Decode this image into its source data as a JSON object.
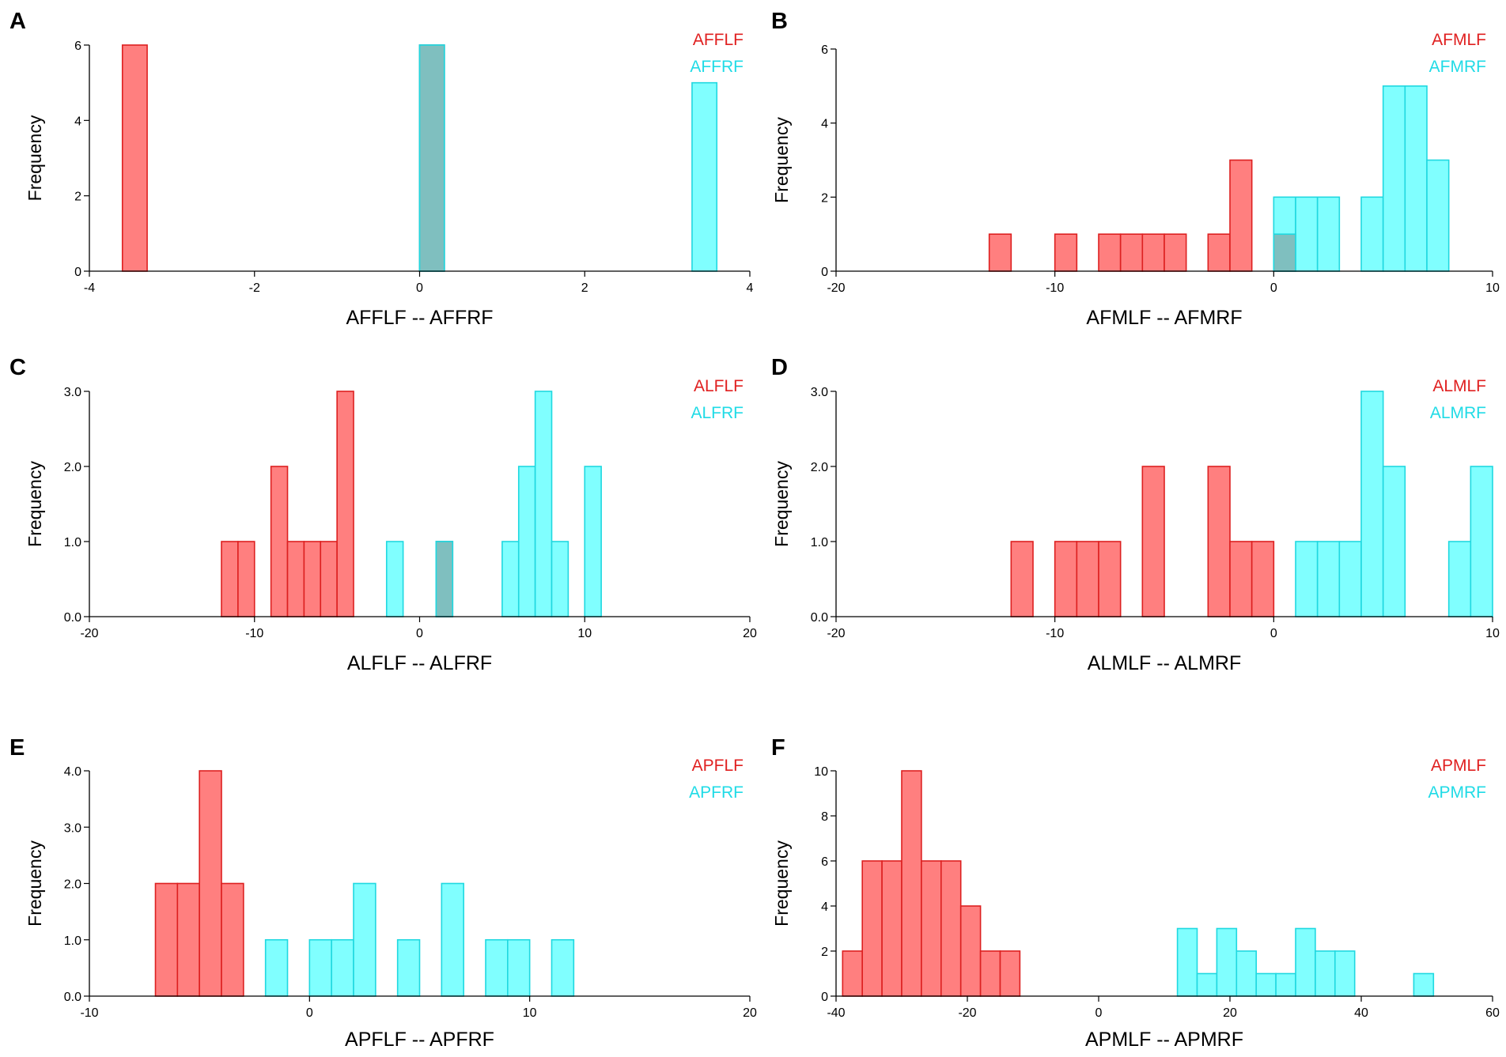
{
  "chart_data": [
    {
      "type": "bar",
      "panel_label": "A",
      "title": "",
      "xlabel": "AFFLF -- AFFRF",
      "ylabel": "Frequency",
      "xlim": [
        -4,
        4
      ],
      "ylim": [
        0,
        6
      ],
      "xticks": [
        -4,
        -2,
        0,
        2,
        4
      ],
      "xtick_labels": [
        "-4",
        "-2",
        "0",
        "2",
        "4"
      ],
      "yticks": [
        0,
        2,
        4,
        6
      ],
      "ytick_labels": [
        "0",
        "2",
        "4",
        "6"
      ],
      "legend_position": "top-right",
      "series": [
        {
          "name": "AFFLF",
          "color": "#ff7f7f",
          "edge": "#dd2020",
          "legend_color": "#e02020",
          "bins": [
            {
              "x0": -3.6,
              "x1": -3.3,
              "count": 6
            },
            {
              "x0": 0,
              "x1": 0.3,
              "count": 6
            }
          ]
        },
        {
          "name": "AFFRF",
          "color": "#80ffff",
          "edge": "#20d8e0",
          "legend_color": "#20dbe6",
          "bins": [
            {
              "x0": 0,
              "x1": 0.3,
              "count": 6
            },
            {
              "x0": 3.3,
              "x1": 3.6,
              "count": 5
            }
          ]
        }
      ]
    },
    {
      "type": "bar",
      "panel_label": "B",
      "title": "",
      "xlabel": "AFMLF -- AFMRF",
      "ylabel": "Frequency",
      "xlim": [
        -20,
        10
      ],
      "ylim": [
        0,
        6
      ],
      "xticks": [
        -20,
        -10,
        0,
        10
      ],
      "xtick_labels": [
        "-20",
        "-10",
        "0",
        "10"
      ],
      "yticks": [
        0,
        2,
        4,
        6
      ],
      "ytick_labels": [
        "0",
        "2",
        "4",
        "6"
      ],
      "legend_position": "top-right",
      "series": [
        {
          "name": "AFMLF",
          "color": "#ff7f7f",
          "edge": "#dd2020",
          "legend_color": "#e02020",
          "bins": [
            {
              "x0": -13,
              "x1": -12,
              "count": 1
            },
            {
              "x0": -10,
              "x1": -9,
              "count": 1
            },
            {
              "x0": -8,
              "x1": -7,
              "count": 1
            },
            {
              "x0": -7,
              "x1": -6,
              "count": 1
            },
            {
              "x0": -6,
              "x1": -5,
              "count": 1
            },
            {
              "x0": -5,
              "x1": -4,
              "count": 1
            },
            {
              "x0": -3,
              "x1": -2,
              "count": 1
            },
            {
              "x0": -2,
              "x1": -1,
              "count": 3
            },
            {
              "x0": 0,
              "x1": 1,
              "count": 1
            }
          ]
        },
        {
          "name": "AFMRF",
          "color": "#80ffff",
          "edge": "#20d8e0",
          "legend_color": "#20dbe6",
          "bins": [
            {
              "x0": 0,
              "x1": 1,
              "count": 2
            },
            {
              "x0": 1,
              "x1": 2,
              "count": 2
            },
            {
              "x0": 2,
              "x1": 3,
              "count": 2
            },
            {
              "x0": 4,
              "x1": 5,
              "count": 2
            },
            {
              "x0": 5,
              "x1": 6,
              "count": 5
            },
            {
              "x0": 6,
              "x1": 7,
              "count": 5
            },
            {
              "x0": 7,
              "x1": 8,
              "count": 3
            }
          ]
        }
      ]
    },
    {
      "type": "bar",
      "panel_label": "C",
      "title": "",
      "xlabel": "ALFLF -- ALFRF",
      "ylabel": "Frequency",
      "xlim": [
        -20,
        20
      ],
      "ylim": [
        0,
        3
      ],
      "xticks": [
        -20,
        -10,
        0,
        10,
        20
      ],
      "xtick_labels": [
        "-20",
        "-10",
        "0",
        "10",
        "20"
      ],
      "yticks": [
        0,
        1,
        2,
        3
      ],
      "ytick_labels": [
        "0.0",
        "1.0",
        "2.0",
        "3.0"
      ],
      "legend_position": "top-right",
      "series": [
        {
          "name": "ALFLF",
          "color": "#ff7f7f",
          "edge": "#dd2020",
          "legend_color": "#e02020",
          "bins": [
            {
              "x0": -12,
              "x1": -11,
              "count": 1
            },
            {
              "x0": -11,
              "x1": -10,
              "count": 1
            },
            {
              "x0": -9,
              "x1": -8,
              "count": 2
            },
            {
              "x0": -8,
              "x1": -7,
              "count": 1
            },
            {
              "x0": -7,
              "x1": -6,
              "count": 1
            },
            {
              "x0": -6,
              "x1": -5,
              "count": 1
            },
            {
              "x0": -5,
              "x1": -4,
              "count": 3
            },
            {
              "x0": 1,
              "x1": 2,
              "count": 1
            }
          ]
        },
        {
          "name": "ALFRF",
          "color": "#80ffff",
          "edge": "#20d8e0",
          "legend_color": "#20dbe6",
          "bins": [
            {
              "x0": -2,
              "x1": -1,
              "count": 1
            },
            {
              "x0": 1,
              "x1": 2,
              "count": 1
            },
            {
              "x0": 5,
              "x1": 6,
              "count": 1
            },
            {
              "x0": 6,
              "x1": 7,
              "count": 2
            },
            {
              "x0": 7,
              "x1": 8,
              "count": 3
            },
            {
              "x0": 8,
              "x1": 9,
              "count": 1
            },
            {
              "x0": 10,
              "x1": 11,
              "count": 2
            }
          ]
        }
      ]
    },
    {
      "type": "bar",
      "panel_label": "D",
      "title": "",
      "xlabel": "ALMLF -- ALMRF",
      "ylabel": "Frequency",
      "xlim": [
        -20,
        10
      ],
      "ylim": [
        0,
        3
      ],
      "xticks": [
        -20,
        -10,
        0,
        10
      ],
      "xtick_labels": [
        "-20",
        "-10",
        "0",
        "10"
      ],
      "yticks": [
        0,
        1,
        2,
        3
      ],
      "ytick_labels": [
        "0.0",
        "1.0",
        "2.0",
        "3.0"
      ],
      "legend_position": "top-right",
      "series": [
        {
          "name": "ALMLF",
          "color": "#ff7f7f",
          "edge": "#dd2020",
          "legend_color": "#e02020",
          "bins": [
            {
              "x0": -12,
              "x1": -11,
              "count": 1
            },
            {
              "x0": -10,
              "x1": -9,
              "count": 1
            },
            {
              "x0": -9,
              "x1": -8,
              "count": 1
            },
            {
              "x0": -8,
              "x1": -7,
              "count": 1
            },
            {
              "x0": -6,
              "x1": -5,
              "count": 2
            },
            {
              "x0": -3,
              "x1": -2,
              "count": 2
            },
            {
              "x0": -2,
              "x1": -1,
              "count": 1
            },
            {
              "x0": -1,
              "x1": 0,
              "count": 1
            }
          ]
        },
        {
          "name": "ALMRF",
          "color": "#80ffff",
          "edge": "#20d8e0",
          "legend_color": "#20dbe6",
          "bins": [
            {
              "x0": 1,
              "x1": 2,
              "count": 1
            },
            {
              "x0": 2,
              "x1": 3,
              "count": 1
            },
            {
              "x0": 3,
              "x1": 4,
              "count": 1
            },
            {
              "x0": 4,
              "x1": 5,
              "count": 3
            },
            {
              "x0": 5,
              "x1": 6,
              "count": 2
            },
            {
              "x0": 8,
              "x1": 9,
              "count": 1
            },
            {
              "x0": 9,
              "x1": 10,
              "count": 2
            }
          ]
        }
      ]
    },
    {
      "type": "bar",
      "panel_label": "E",
      "title": "",
      "xlabel": "APFLF -- APFRF",
      "ylabel": "Frequency",
      "xlim": [
        -10,
        20
      ],
      "ylim": [
        0,
        4
      ],
      "xticks": [
        -10,
        0,
        10,
        20
      ],
      "xtick_labels": [
        "-10",
        "0",
        "10",
        "20"
      ],
      "yticks": [
        0,
        1,
        2,
        3,
        4
      ],
      "ytick_labels": [
        "0.0",
        "1.0",
        "2.0",
        "3.0",
        "4.0"
      ],
      "legend_position": "top-right",
      "series": [
        {
          "name": "APFLF",
          "color": "#ff7f7f",
          "edge": "#dd2020",
          "legend_color": "#e02020",
          "bins": [
            {
              "x0": -7,
              "x1": -6,
              "count": 2
            },
            {
              "x0": -6,
              "x1": -5,
              "count": 2
            },
            {
              "x0": -5,
              "x1": -4,
              "count": 4
            },
            {
              "x0": -4,
              "x1": -3,
              "count": 2
            }
          ]
        },
        {
          "name": "APFRF",
          "color": "#80ffff",
          "edge": "#20d8e0",
          "legend_color": "#20dbe6",
          "bins": [
            {
              "x0": -2,
              "x1": -1,
              "count": 1
            },
            {
              "x0": 0,
              "x1": 1,
              "count": 1
            },
            {
              "x0": 1,
              "x1": 2,
              "count": 1
            },
            {
              "x0": 2,
              "x1": 3,
              "count": 2
            },
            {
              "x0": 4,
              "x1": 5,
              "count": 1
            },
            {
              "x0": 6,
              "x1": 7,
              "count": 2
            },
            {
              "x0": 8,
              "x1": 9,
              "count": 1
            },
            {
              "x0": 9,
              "x1": 10,
              "count": 1
            },
            {
              "x0": 11,
              "x1": 12,
              "count": 1
            }
          ]
        }
      ]
    },
    {
      "type": "bar",
      "panel_label": "F",
      "title": "",
      "xlabel": "APMLF -- APMRF",
      "ylabel": "Frequency",
      "xlim": [
        -40,
        60
      ],
      "ylim": [
        0,
        10
      ],
      "xticks": [
        -40,
        -20,
        0,
        20,
        40,
        60
      ],
      "xtick_labels": [
        "-40",
        "-20",
        "0",
        "20",
        "40",
        "60"
      ],
      "yticks": [
        0,
        2,
        4,
        6,
        8,
        10
      ],
      "ytick_labels": [
        "0",
        "2",
        "4",
        "6",
        "8",
        "10"
      ],
      "legend_position": "top-right",
      "series": [
        {
          "name": "APMLF",
          "color": "#ff7f7f",
          "edge": "#dd2020",
          "legend_color": "#e02020",
          "bins": [
            {
              "x0": -39,
              "x1": -36,
              "count": 2
            },
            {
              "x0": -36,
              "x1": -33,
              "count": 6
            },
            {
              "x0": -33,
              "x1": -30,
              "count": 6
            },
            {
              "x0": -30,
              "x1": -27,
              "count": 10
            },
            {
              "x0": -27,
              "x1": -24,
              "count": 6
            },
            {
              "x0": -24,
              "x1": -21,
              "count": 6
            },
            {
              "x0": -21,
              "x1": -18,
              "count": 4
            },
            {
              "x0": -18,
              "x1": -15,
              "count": 2
            },
            {
              "x0": -15,
              "x1": -12,
              "count": 2
            }
          ]
        },
        {
          "name": "APMRF",
          "color": "#80ffff",
          "edge": "#20d8e0",
          "legend_color": "#20dbe6",
          "bins": [
            {
              "x0": 12,
              "x1": 15,
              "count": 3
            },
            {
              "x0": 15,
              "x1": 18,
              "count": 1
            },
            {
              "x0": 18,
              "x1": 21,
              "count": 3
            },
            {
              "x0": 21,
              "x1": 24,
              "count": 2
            },
            {
              "x0": 24,
              "x1": 27,
              "count": 1
            },
            {
              "x0": 27,
              "x1": 30,
              "count": 1
            },
            {
              "x0": 30,
              "x1": 33,
              "count": 3
            },
            {
              "x0": 33,
              "x1": 36,
              "count": 2
            },
            {
              "x0": 36,
              "x1": 39,
              "count": 2
            },
            {
              "x0": 48,
              "x1": 51,
              "count": 1
            }
          ]
        }
      ]
    }
  ]
}
